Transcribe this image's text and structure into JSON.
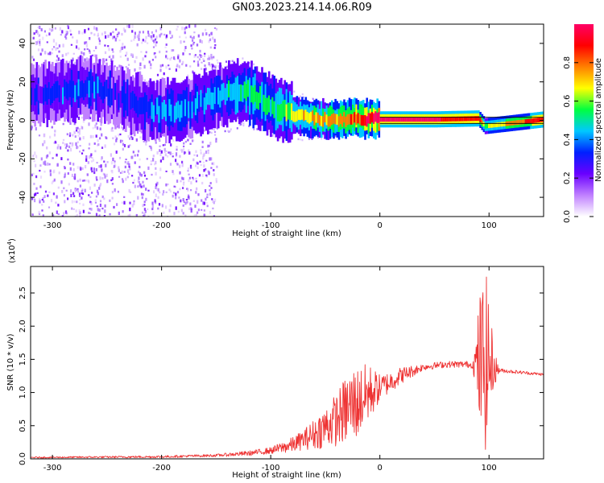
{
  "title": "GN03.2023.214.14.06.R09",
  "chart_data": [
    {
      "type": "heatmap",
      "xlabel": "Height of straight line (km)",
      "ylabel": "Frequency (Hz)",
      "xlim": [
        -320,
        150
      ],
      "ylim": [
        -50,
        50
      ],
      "x_ticks": [
        -300,
        -200,
        -100,
        0,
        100
      ],
      "x_tick_labels": [
        "-300",
        "-200",
        "-100",
        "0",
        "100"
      ],
      "y_ticks": [
        -40,
        -20,
        0,
        20,
        40
      ],
      "y_tick_labels": [
        "-40",
        "-20",
        "0",
        "20",
        "40"
      ],
      "colorbar": {
        "label": "Normalized spectral amplitude",
        "range": [
          0.0,
          1.0
        ],
        "ticks": [
          0.0,
          0.2,
          0.4,
          0.6,
          0.8
        ],
        "tick_labels": [
          "0.0",
          "0.2",
          "0.4",
          "0.6",
          "0.8"
        ],
        "colormap": [
          "#ffffff",
          "#c080ff",
          "#6a00ff",
          "#0020ff",
          "#00c8ff",
          "#00ff40",
          "#ffff00",
          "#ff8000",
          "#ff0000",
          "#ff0066"
        ]
      },
      "ridge": {
        "x": [
          -300,
          -280,
          -260,
          -240,
          -220,
          -200,
          -180,
          -160,
          -140,
          -125,
          -110,
          -95,
          -80,
          -60,
          -40,
          -20,
          0,
          50,
          90,
          96,
          150
        ],
        "y": [
          14,
          16,
          17,
          12,
          7,
          5,
          6,
          10,
          14,
          16,
          11,
          6,
          3,
          1,
          0.5,
          1,
          0.5,
          0.5,
          1,
          -3,
          0.5
        ],
        "amplitude": [
          0.3,
          0.35,
          0.35,
          0.3,
          0.35,
          0.4,
          0.4,
          0.4,
          0.45,
          0.5,
          0.55,
          0.55,
          0.65,
          0.7,
          0.75,
          0.85,
          0.95,
          0.95,
          0.9,
          0.6,
          0.95
        ]
      }
    },
    {
      "type": "line",
      "xlabel": "Height of straight line (km)",
      "ylabel": "SNR (10 * v/v)",
      "y_scale_label": "(x10",
      "y_scale_exp": "4",
      "xlim": [
        -320,
        150
      ],
      "ylim": [
        0,
        2.9
      ],
      "x_ticks": [
        -300,
        -200,
        -100,
        0,
        100
      ],
      "x_tick_labels": [
        "-300",
        "-200",
        "-100",
        "0",
        "100"
      ],
      "y_ticks": [
        0.0,
        0.5,
        1.0,
        1.5,
        2.0,
        2.5
      ],
      "y_tick_labels": [
        "0.0",
        "0.5",
        "1.0",
        "1.5",
        "2.0",
        "2.5"
      ],
      "color": "#ee3333",
      "envelope": {
        "x": [
          -320,
          -200,
          -150,
          -120,
          -100,
          -80,
          -60,
          -40,
          -30,
          -20,
          -10,
          0,
          20,
          40,
          60,
          80,
          88,
          92,
          95,
          98,
          100,
          110,
          150
        ],
        "y": [
          0.02,
          0.03,
          0.05,
          0.08,
          0.12,
          0.2,
          0.35,
          0.55,
          0.7,
          0.8,
          0.95,
          1.05,
          1.25,
          1.38,
          1.42,
          1.42,
          1.4,
          1.3,
          1.3,
          1.35,
          1.35,
          1.33,
          1.27
        ]
      },
      "noise_amplitude": {
        "x": [
          -320,
          -150,
          -100,
          -70,
          -40,
          -25,
          -10,
          0,
          40,
          85,
          88,
          92,
          96,
          100,
          104,
          110,
          150
        ],
        "y": [
          0.01,
          0.02,
          0.05,
          0.15,
          0.4,
          0.6,
          0.45,
          0.2,
          0.05,
          0.05,
          0.4,
          1.2,
          1.4,
          1.1,
          0.3,
          0.03,
          0.02
        ]
      }
    }
  ]
}
